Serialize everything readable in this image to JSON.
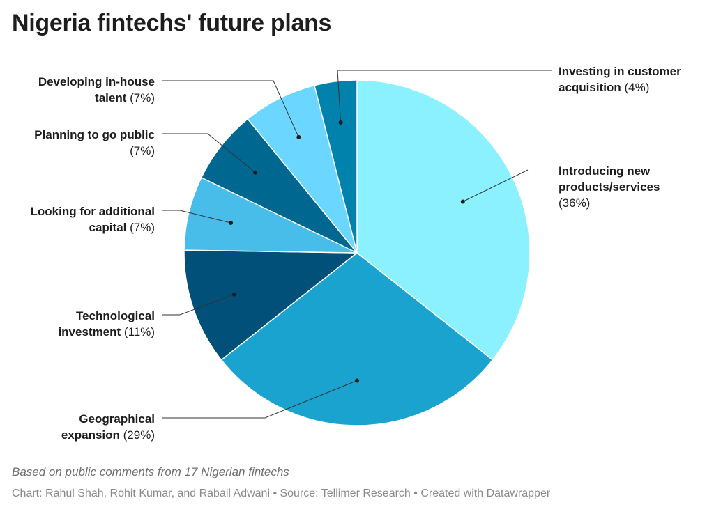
{
  "title": "Nigeria fintechs' future plans",
  "notes": "Based on public comments from 17 Nigerian fintechs",
  "byline": "Chart: Rahul Shah, Rohit Kumar, and Rabail Adwani • Source: Tellimer Research • Created with Datawrapper",
  "chart_data": {
    "type": "pie",
    "slices": [
      {
        "name": "Introducing new products/services",
        "value": 36,
        "label": "(36%)",
        "color": "#8bf1ff"
      },
      {
        "name": "Geographical expansion",
        "value": 29,
        "label": "(29%)",
        "color": "#1aa3cf"
      },
      {
        "name": "Technological investment",
        "value": 11,
        "label": "(11%)",
        "color": "#00507a"
      },
      {
        "name": "Looking for additional capital",
        "value": 7,
        "label": "(7%)",
        "color": "#48bde9"
      },
      {
        "name": "Planning to go public",
        "value": 7,
        "label": "(7%)",
        "color": "#006890"
      },
      {
        "name": "Developing in-house talent",
        "value": 7,
        "label": "(7%)",
        "color": "#6bd6ff"
      },
      {
        "name": "Investing in customer acquisition",
        "value": 4,
        "label": "(4%)",
        "color": "#0082ad"
      }
    ]
  }
}
